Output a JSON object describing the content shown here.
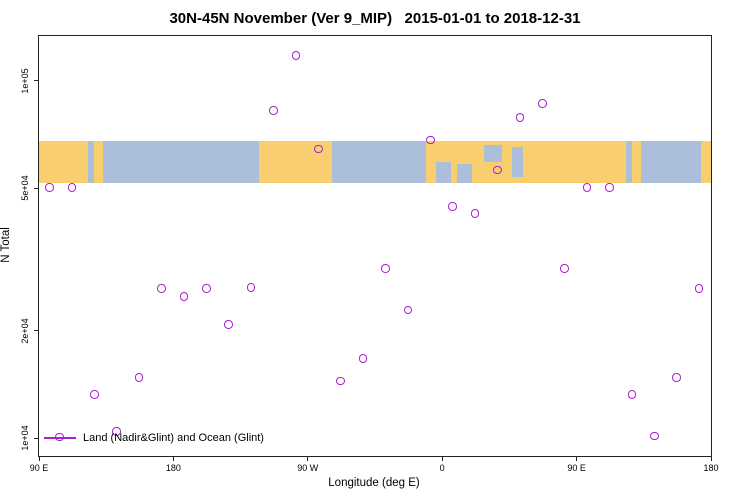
{
  "title": "30N-45N November (Ver 9_MIP)   2015-01-01 to 2018-12-31",
  "chart_data": {
    "type": "scatter",
    "title": "30N-45N November (Ver 9_MIP)   2015-01-01 to 2018-12-31",
    "xlabel": "Longitude (deg E)",
    "ylabel": "N Total",
    "grid": false,
    "legend_position": "bottom-left-inside",
    "x_axis": {
      "note": "extended longitude axis, 0 = 90E wrapping east through 180, 90W, 0, 90E to 180",
      "range": [
        0,
        450
      ],
      "ticks": [
        {
          "pos": 0,
          "label": "90 E"
        },
        {
          "pos": 90,
          "label": "180"
        },
        {
          "pos": 180,
          "label": "90 W"
        },
        {
          "pos": 270,
          "label": "0"
        },
        {
          "pos": 360,
          "label": "90 E"
        },
        {
          "pos": 450,
          "label": "180"
        }
      ]
    },
    "y_axis": {
      "scale": "log10",
      "range_log10": [
        3.95,
        5.125
      ],
      "ticks": [
        {
          "value": 10000,
          "label": "1e+04"
        },
        {
          "value": 20000,
          "label": "2e+04"
        },
        {
          "value": 50000,
          "label": "5e+04"
        },
        {
          "value": 100000,
          "label": "1e+05"
        }
      ]
    },
    "series": [
      {
        "name": "Land (Nadir&Glint) and Ocean (Glint)",
        "color": "#A820D0",
        "marker": "open-circle",
        "points": [
          {
            "x": 7.5,
            "y": 50000
          },
          {
            "x": 22.5,
            "y": 50000
          },
          {
            "x": 37.5,
            "y": 13200
          },
          {
            "x": 52.5,
            "y": 10400
          },
          {
            "x": 67.5,
            "y": 14700
          },
          {
            "x": 82.5,
            "y": 26100
          },
          {
            "x": 97.5,
            "y": 24800
          },
          {
            "x": 112.5,
            "y": 26100
          },
          {
            "x": 127.5,
            "y": 20700
          },
          {
            "x": 142.5,
            "y": 26300
          },
          {
            "x": 157.5,
            "y": 82000
          },
          {
            "x": 172.5,
            "y": 117000
          },
          {
            "x": 187.5,
            "y": 64000
          },
          {
            "x": 202.5,
            "y": 14400
          },
          {
            "x": 217.5,
            "y": 16600
          },
          {
            "x": 232.5,
            "y": 29700
          },
          {
            "x": 247.5,
            "y": 22700
          },
          {
            "x": 262.5,
            "y": 68000
          },
          {
            "x": 277.5,
            "y": 44300
          },
          {
            "x": 292.5,
            "y": 42300
          },
          {
            "x": 307.5,
            "y": 56000
          },
          {
            "x": 322.5,
            "y": 78500
          },
          {
            "x": 337.5,
            "y": 86000
          },
          {
            "x": 352.5,
            "y": 29700
          },
          {
            "x": 367.5,
            "y": 50000
          },
          {
            "x": 382.5,
            "y": 50000
          },
          {
            "x": 397.5,
            "y": 13200
          },
          {
            "x": 412.5,
            "y": 10100
          },
          {
            "x": 427.5,
            "y": 14700
          },
          {
            "x": 442.5,
            "y": 26100
          }
        ]
      }
    ],
    "map_band": {
      "note": "world map strip of the 30N-45N latitude band drawn across the plot",
      "y_top_value": 67800,
      "y_bottom_value": 51700,
      "land_color": "#F8CE6E",
      "ocean_color": "#ABBFDA",
      "segments": [
        {
          "start": 0,
          "end": 33,
          "type": "land"
        },
        {
          "start": 37,
          "end": 43,
          "type": "land"
        },
        {
          "start": 147,
          "end": 196,
          "type": "land"
        },
        {
          "start": 259,
          "end": 360,
          "type": "land"
        },
        {
          "start": 266,
          "end": 276,
          "type": "ocean",
          "top": 0.5,
          "bottom": 1
        },
        {
          "start": 280,
          "end": 290,
          "type": "ocean",
          "top": 0.55,
          "bottom": 1
        },
        {
          "start": 298,
          "end": 310,
          "type": "ocean",
          "top": 0.1,
          "bottom": 0.5
        },
        {
          "start": 317,
          "end": 324,
          "type": "ocean",
          "top": 0.15,
          "bottom": 0.85
        },
        {
          "start": 360,
          "end": 393,
          "type": "land"
        },
        {
          "start": 397,
          "end": 403,
          "type": "land"
        },
        {
          "start": 443,
          "end": 450,
          "type": "land"
        }
      ]
    }
  },
  "legend": {
    "label": "Land (Nadir&Glint) and Ocean (Glint)"
  }
}
